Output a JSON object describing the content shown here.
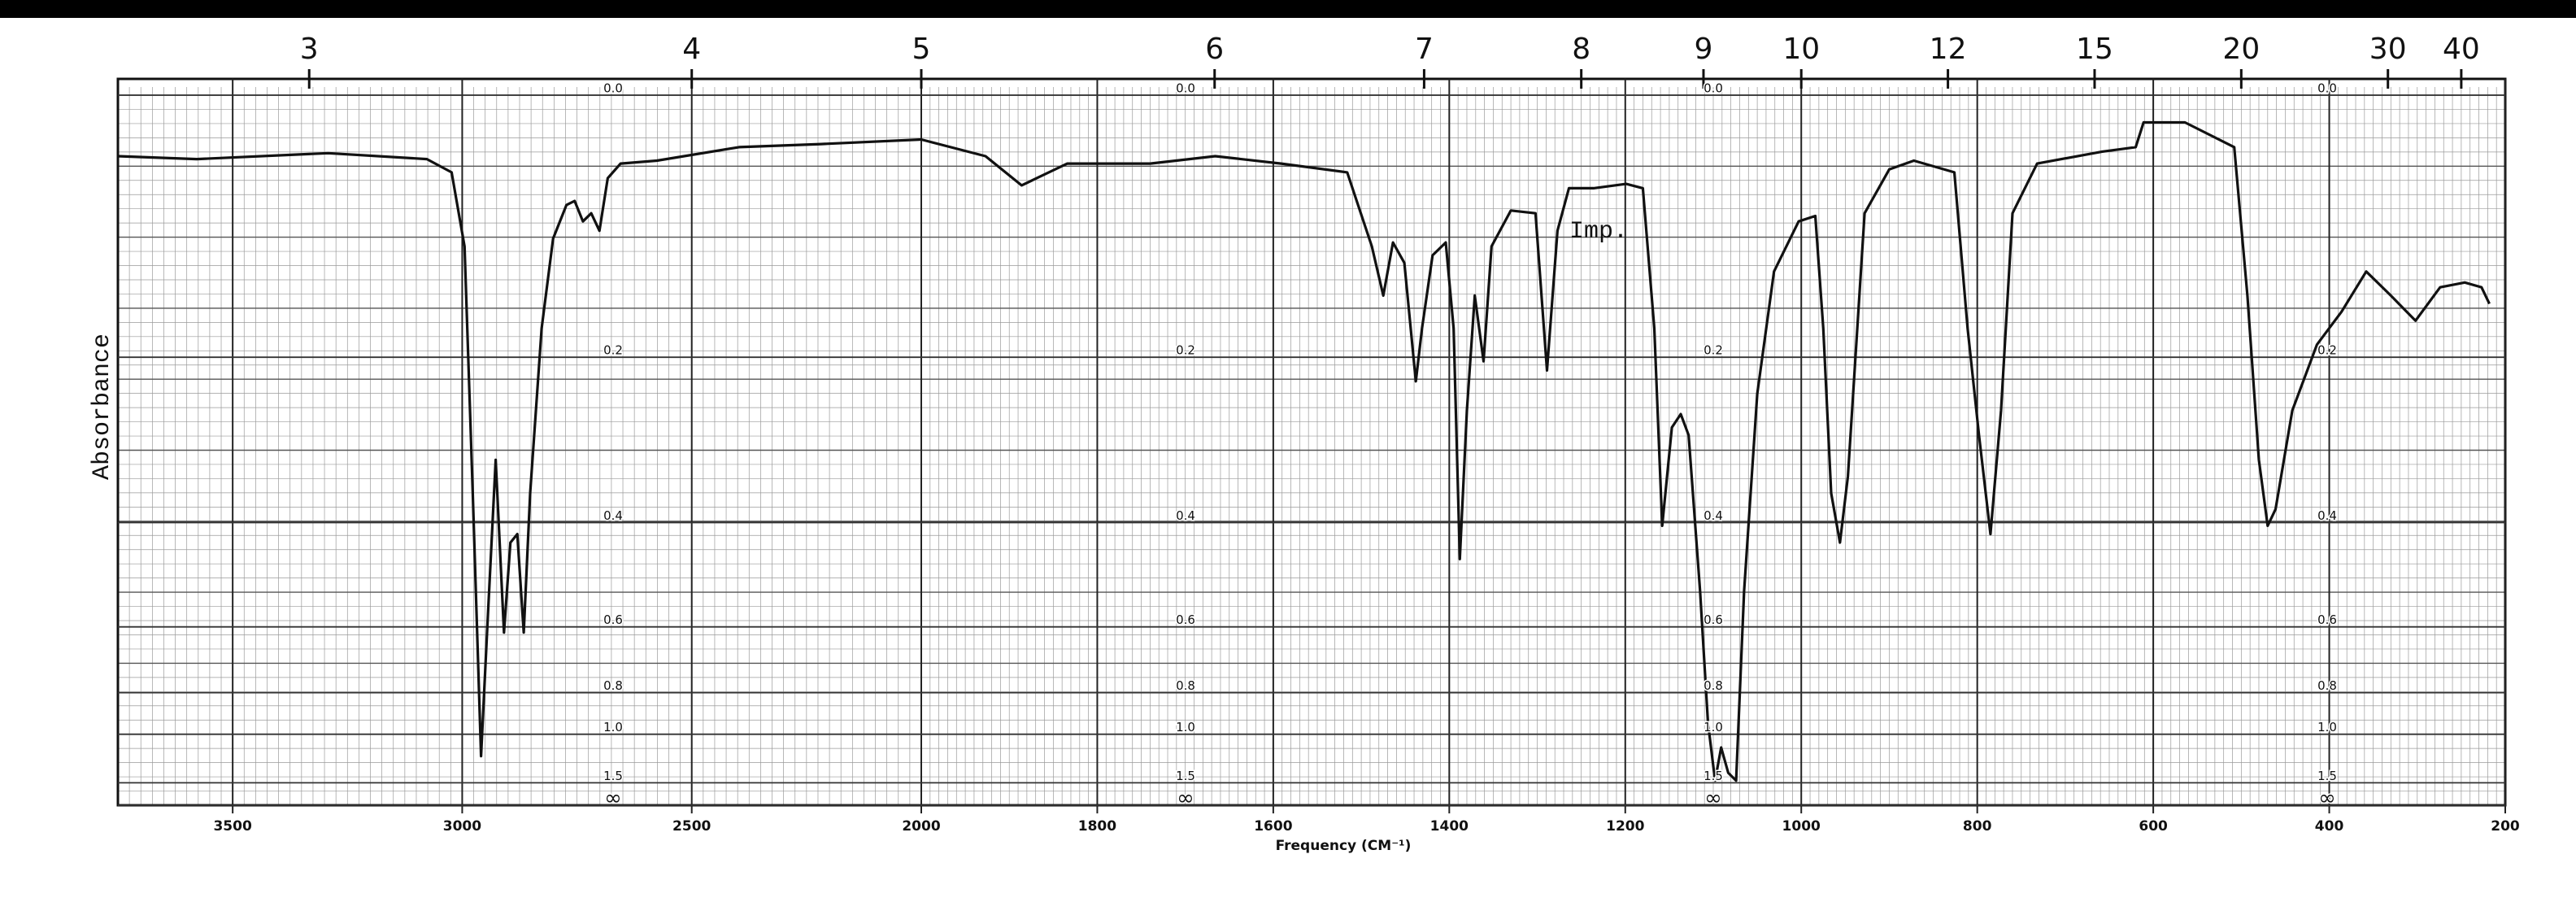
{
  "chart_data": {
    "type": "line",
    "y_label": "Absorbance",
    "x_label": "Frequency (CM⁻¹)",
    "annotation": "Imp.",
    "xlim": [
      3750,
      200
    ],
    "xticks": [
      3500,
      3000,
      2500,
      2000,
      1800,
      1600,
      1400,
      1200,
      1000,
      800,
      600,
      400,
      200
    ],
    "x2ticks": [
      3,
      4,
      5,
      6,
      7,
      8,
      9,
      10,
      12,
      15,
      20,
      30,
      40
    ],
    "yscale": "absorbance",
    "ylim": [
      0,
      null
    ],
    "yticks": [
      {
        "value": 0,
        "label": "0.0"
      },
      0.2,
      0.4,
      0.6,
      0.8,
      {
        "value": 1,
        "label": "1.0"
      },
      1.5,
      {
        "value": null,
        "label": "∞"
      }
    ],
    "grid": true,
    "color": "#111111",
    "x": [
      3750,
      3578,
      3292,
      3077,
      3023,
      2995,
      2977,
      2959,
      2945,
      2927,
      2909,
      2895,
      2880,
      2866,
      2852,
      2827,
      2802,
      2773,
      2755,
      2737,
      2719,
      2701,
      2683,
      2655,
      2576,
      2397,
      2218,
      2000,
      1927,
      1886,
      1834,
      1740,
      1666,
      1591,
      1516,
      1488,
      1475,
      1464,
      1451,
      1438,
      1431,
      1419,
      1404,
      1395,
      1388,
      1380,
      1371,
      1361,
      1352,
      1330,
      1302,
      1289,
      1277,
      1264,
      1236,
      1199,
      1180,
      1167,
      1158,
      1147,
      1137,
      1128,
      1115,
      1106,
      1098,
      1091,
      1083,
      1074,
      1065,
      1050,
      1031,
      1003,
      984,
      975,
      966,
      956,
      947,
      928,
      900,
      872,
      826,
      811,
      798,
      785,
      773,
      760,
      732,
      658,
      620,
      611,
      564,
      508,
      493,
      480,
      470,
      461,
      442,
      414,
      386,
      358,
      330,
      302,
      274,
      246,
      227,
      218
    ],
    "values": [
      0.039,
      0.041,
      0.037,
      0.041,
      0.05,
      0.104,
      0.357,
      1.16,
      0.593,
      0.313,
      0.614,
      0.432,
      0.418,
      0.614,
      0.357,
      0.173,
      0.098,
      0.073,
      0.07,
      0.085,
      0.079,
      0.092,
      0.054,
      0.044,
      0.042,
      0.033,
      0.031,
      0.028,
      0.039,
      0.059,
      0.044,
      0.044,
      0.039,
      0.044,
      0.05,
      0.104,
      0.144,
      0.101,
      0.117,
      0.224,
      0.173,
      0.111,
      0.101,
      0.173,
      0.46,
      0.255,
      0.144,
      0.204,
      0.104,
      0.077,
      0.079,
      0.213,
      0.092,
      0.061,
      0.061,
      0.058,
      0.061,
      0.173,
      0.405,
      0.274,
      0.259,
      0.283,
      0.521,
      0.935,
      1.46,
      1.09,
      1.34,
      1.46,
      0.521,
      0.237,
      0.124,
      0.085,
      0.081,
      0.173,
      0.357,
      0.432,
      0.334,
      0.079,
      0.048,
      0.042,
      0.05,
      0.173,
      0.283,
      0.418,
      0.255,
      0.079,
      0.044,
      0.036,
      0.033,
      0.017,
      0.017,
      0.033,
      0.144,
      0.313,
      0.405,
      0.38,
      0.255,
      0.188,
      0.158,
      0.124,
      0.144,
      0.166,
      0.137,
      0.133,
      0.137,
      0.151
    ]
  }
}
